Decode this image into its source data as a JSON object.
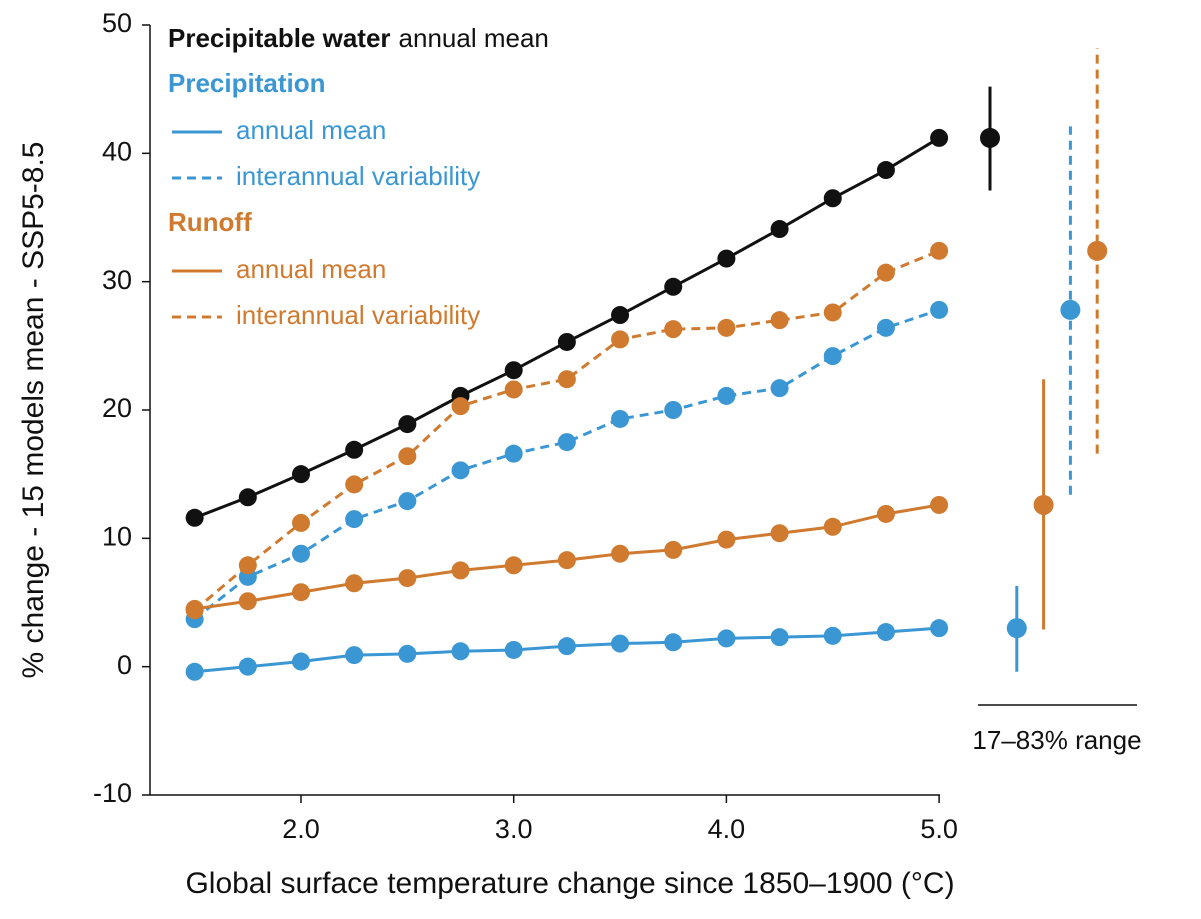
{
  "chart_data": {
    "type": "line",
    "y_label": "% change - 15 models mean - SSP5-8.5",
    "x_label": "Global surface temperature change since 1850–1900 (°C)",
    "x": [
      1.5,
      1.75,
      2.0,
      2.25,
      2.5,
      2.75,
      3.0,
      3.25,
      3.5,
      3.75,
      4.0,
      4.25,
      4.5,
      4.75,
      5.0
    ],
    "xlim": [
      1.3,
      5.0
    ],
    "xticks": [
      {
        "value": 2,
        "label": "2.0"
      },
      {
        "value": 3,
        "label": "3.0"
      },
      {
        "value": 4,
        "label": "4.0"
      },
      {
        "value": 5,
        "label": "5.0"
      }
    ],
    "ylim": [
      -10,
      50
    ],
    "yticks": [
      -10,
      0,
      10,
      20,
      30,
      40,
      50
    ],
    "series": [
      {
        "group": "Precipitable water",
        "name": "annual mean",
        "color": "#111111",
        "dashed": false,
        "legend_inline": true,
        "values": [
          11.6,
          13.2,
          15.0,
          16.9,
          18.9,
          21.1,
          23.1,
          25.3,
          27.4,
          29.6,
          31.8,
          34.1,
          36.5,
          38.7,
          41.2
        ],
        "range": [
          37.1,
          45.2
        ]
      },
      {
        "group": "Precipitation",
        "name": "annual mean",
        "color": "#3a97d4",
        "dashed": false,
        "values": [
          -0.4,
          0.0,
          0.4,
          0.9,
          1.0,
          1.2,
          1.3,
          1.6,
          1.8,
          1.9,
          2.2,
          2.3,
          2.4,
          2.7,
          3.0
        ],
        "range": [
          -0.4,
          6.3
        ]
      },
      {
        "group": "Precipitation",
        "name": "interannual variability",
        "color": "#3a97d4",
        "dashed": true,
        "values": [
          3.7,
          7.0,
          8.8,
          11.5,
          12.9,
          15.3,
          16.6,
          17.5,
          19.3,
          20.0,
          21.1,
          21.7,
          24.2,
          26.4,
          27.8
        ],
        "range": [
          13.4,
          42.1
        ]
      },
      {
        "group": "Runoff",
        "name": "annual mean",
        "color": "#cf7a2f",
        "dashed": false,
        "values": [
          4.5,
          5.1,
          5.8,
          6.5,
          6.9,
          7.5,
          7.9,
          8.3,
          8.8,
          9.1,
          9.9,
          10.4,
          10.9,
          11.9,
          12.6
        ],
        "range": [
          2.9,
          22.4
        ]
      },
      {
        "group": "Runoff",
        "name": "interannual variability",
        "color": "#cf7a2f",
        "dashed": true,
        "values": [
          4.4,
          7.9,
          11.2,
          14.2,
          16.4,
          20.3,
          21.6,
          22.4,
          25.5,
          26.3,
          26.4,
          27.0,
          27.6,
          30.7,
          32.4
        ],
        "range": [
          16.6,
          48.2
        ]
      }
    ],
    "range_label": "17–83% range"
  }
}
